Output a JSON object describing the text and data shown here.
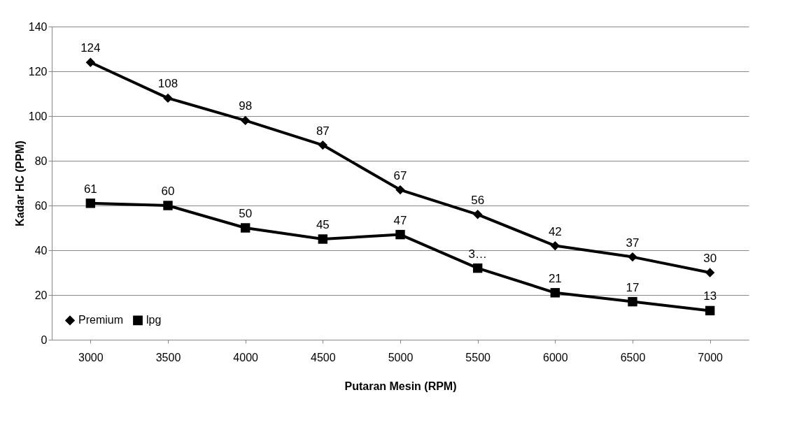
{
  "chart_data": {
    "type": "line",
    "xlabel": "Putaran Mesin (RPM)",
    "ylabel": "Kadar HC (PPM)",
    "categories": [
      "3000",
      "3500",
      "4000",
      "4500",
      "5000",
      "5500",
      "6000",
      "6500",
      "7000"
    ],
    "ylim": [
      0,
      140
    ],
    "yticks": [
      0,
      20,
      40,
      60,
      80,
      100,
      120,
      140
    ],
    "grid": "y",
    "legend": "bottom left",
    "line_style": "solid",
    "series": [
      {
        "name": "Premium",
        "color": "#000000",
        "marker": "diamond",
        "values": [
          124,
          108,
          98,
          87,
          67,
          56,
          42,
          37,
          30
        ],
        "value_labels": [
          "124",
          "108",
          "98",
          "87",
          "67",
          "56",
          "42",
          "37",
          "30"
        ]
      },
      {
        "name": "lpg",
        "color": "#000000",
        "marker": "square",
        "values": [
          61,
          60,
          50,
          45,
          47,
          32,
          21,
          17,
          13
        ],
        "value_labels": [
          "61",
          "60",
          "50",
          "45",
          "47",
          "3…",
          "21",
          "17",
          "13"
        ]
      }
    ]
  }
}
